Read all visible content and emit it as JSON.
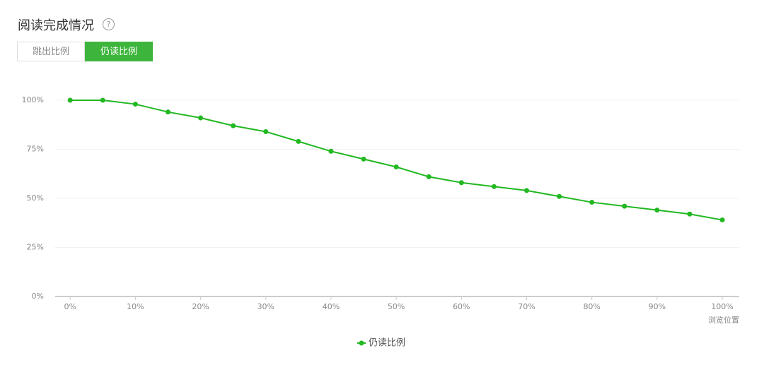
{
  "header": {
    "title": "阅读完成情况"
  },
  "tabs": [
    "跳出比例",
    "仍读比例"
  ],
  "chart_data": {
    "type": "line",
    "x": [
      0,
      5,
      10,
      15,
      20,
      25,
      30,
      35,
      40,
      45,
      50,
      55,
      60,
      65,
      70,
      75,
      80,
      85,
      90,
      95,
      100
    ],
    "series": [
      {
        "name": "仍读比例",
        "color": "#22b822",
        "values": [
          100,
          100,
          98,
          94,
          91,
          87,
          84,
          79,
          74,
          70,
          66,
          61,
          58,
          56,
          54,
          51,
          48,
          46,
          44,
          42,
          39
        ]
      }
    ],
    "x_label": "浏览位置",
    "xlim": [
      -2.3,
      102.6
    ],
    "xticks": [
      {
        "value": 0,
        "label": "0%"
      },
      {
        "value": 10,
        "label": "10%"
      },
      {
        "value": 20,
        "label": "20%"
      },
      {
        "value": 30,
        "label": "30%"
      },
      {
        "value": 40,
        "label": "40%"
      },
      {
        "value": 50,
        "label": "50%"
      },
      {
        "value": 60,
        "label": "60%"
      },
      {
        "value": 70,
        "label": "70%"
      },
      {
        "value": 80,
        "label": "80%"
      },
      {
        "value": 90,
        "label": "90%"
      },
      {
        "value": 100,
        "label": "100%"
      }
    ],
    "ylim": [
      0,
      100
    ],
    "yticks": [
      {
        "value": 0,
        "label": "0%"
      },
      {
        "value": 25,
        "label": "25%"
      },
      {
        "value": 50,
        "label": "50%"
      },
      {
        "value": 75,
        "label": "75%"
      },
      {
        "value": 100,
        "label": "100%"
      }
    ],
    "grid": true
  }
}
